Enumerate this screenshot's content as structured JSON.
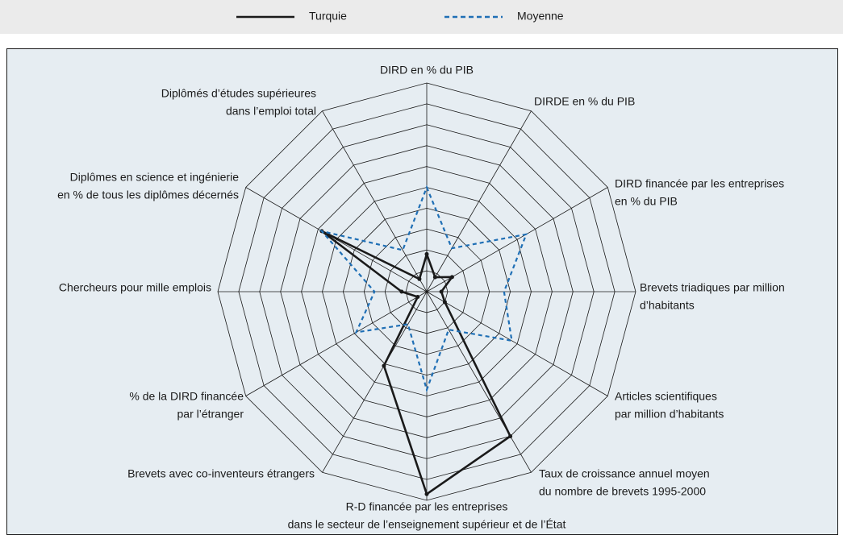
{
  "chart_data": {
    "type": "radar",
    "axes": [
      [
        "DIRD en % du PIB"
      ],
      [
        "DIRDE en % du PIB"
      ],
      [
        "DIRD financée par les entreprises",
        "en % du PIB"
      ],
      [
        "Brevets triadiques par million",
        "d’habitants"
      ],
      [
        "Articles scientifiques",
        "par million d’habitants"
      ],
      [
        "Taux de croissance annuel moyen",
        "du nombre de brevets 1995-2000"
      ],
      [
        "R-D financée par les entreprises",
        "dans le secteur de l’enseignement supérieur et de l’État"
      ],
      [
        "Brevets avec co-inventeurs étrangers"
      ],
      [
        "% de la DIRD financée",
        "par l’étranger"
      ],
      [
        "Chercheurs pour mille emplois"
      ],
      [
        "Diplômes en science et ingénierie",
        "en % de tous les diplômes décernés"
      ],
      [
        "Diplômés d’études supérieures",
        "dans l’emploi total"
      ]
    ],
    "series": [
      {
        "name": "Turquie",
        "color": "#1a1a1a",
        "dashed": false,
        "values": [
          1.8,
          0.8,
          1.4,
          0.7,
          1.0,
          8.0,
          9.7,
          4.1,
          0.5,
          1.2,
          5.8,
          0.7
        ]
      },
      {
        "name": "Moyenne",
        "color": "#1f6fb5",
        "dashed": true,
        "values": [
          5.0,
          2.4,
          5.5,
          3.7,
          4.7,
          2.1,
          4.7,
          1.8,
          3.9,
          2.5,
          5.8,
          2.3
        ]
      }
    ],
    "rlim": [
      0,
      10
    ],
    "rticks": [
      1,
      2,
      3,
      4,
      5,
      6,
      7,
      8,
      9,
      10
    ],
    "legend": "top"
  }
}
